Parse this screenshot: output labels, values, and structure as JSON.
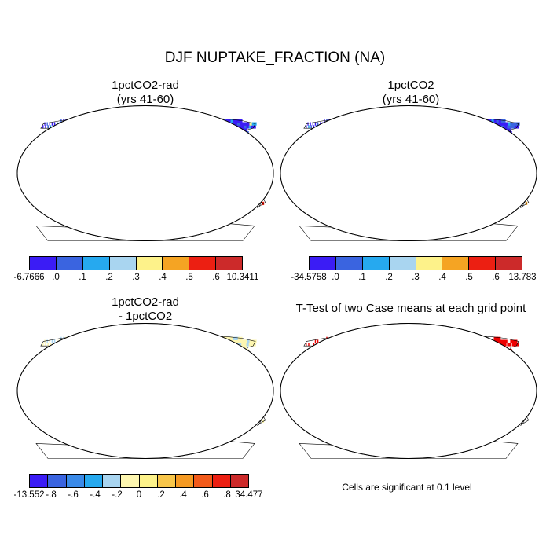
{
  "title": "DJF NUPTAKE_FRACTION (NA)",
  "panels": [
    {
      "title_lines": [
        "1pctCO2-rad",
        "(yrs 41-60)"
      ],
      "colorbar": {
        "colors": [
          "#3b1cf5",
          "#3a64e0",
          "#26a9ef",
          "#a9d5f0",
          "#fdf28a",
          "#f5a423",
          "#ec1f12",
          "#cc2a2a"
        ],
        "labels": [
          "-6.7666",
          ".0",
          ".1",
          ".2",
          ".3",
          ".4",
          ".5",
          ".6",
          "10.3411"
        ]
      }
    },
    {
      "title_lines": [
        "1pctCO2",
        "(yrs 41-60)"
      ],
      "colorbar": {
        "colors": [
          "#3b1cf5",
          "#3a64e0",
          "#26a9ef",
          "#a9d5f0",
          "#fdf28a",
          "#f5a423",
          "#ec1f12",
          "#cc2a2a"
        ],
        "labels": [
          "-34.5758",
          ".0",
          ".1",
          ".2",
          ".3",
          ".4",
          ".5",
          ".6",
          "13.783"
        ]
      }
    },
    {
      "title_lines": [
        "1pctCO2-rad",
        "- 1pctCO2"
      ],
      "colorbar": {
        "colors": [
          "#3b1cf5",
          "#3a64e0",
          "#3a8ae8",
          "#26a9ef",
          "#a9d5f0",
          "#fdf6b0",
          "#fdf28a",
          "#f8c64a",
          "#f59a23",
          "#f25a1a",
          "#ec1f12",
          "#cc2a2a"
        ],
        "labels": [
          "-13.552",
          "-.8",
          "-.6",
          "-.4",
          "-.2",
          "0",
          ".2",
          ".4",
          ".6",
          ".8",
          "34.477"
        ]
      }
    },
    {
      "title_lines": [
        "T-Test of two Case means at each grid point"
      ],
      "note": "Cells are significant at 0.1 level"
    }
  ]
}
